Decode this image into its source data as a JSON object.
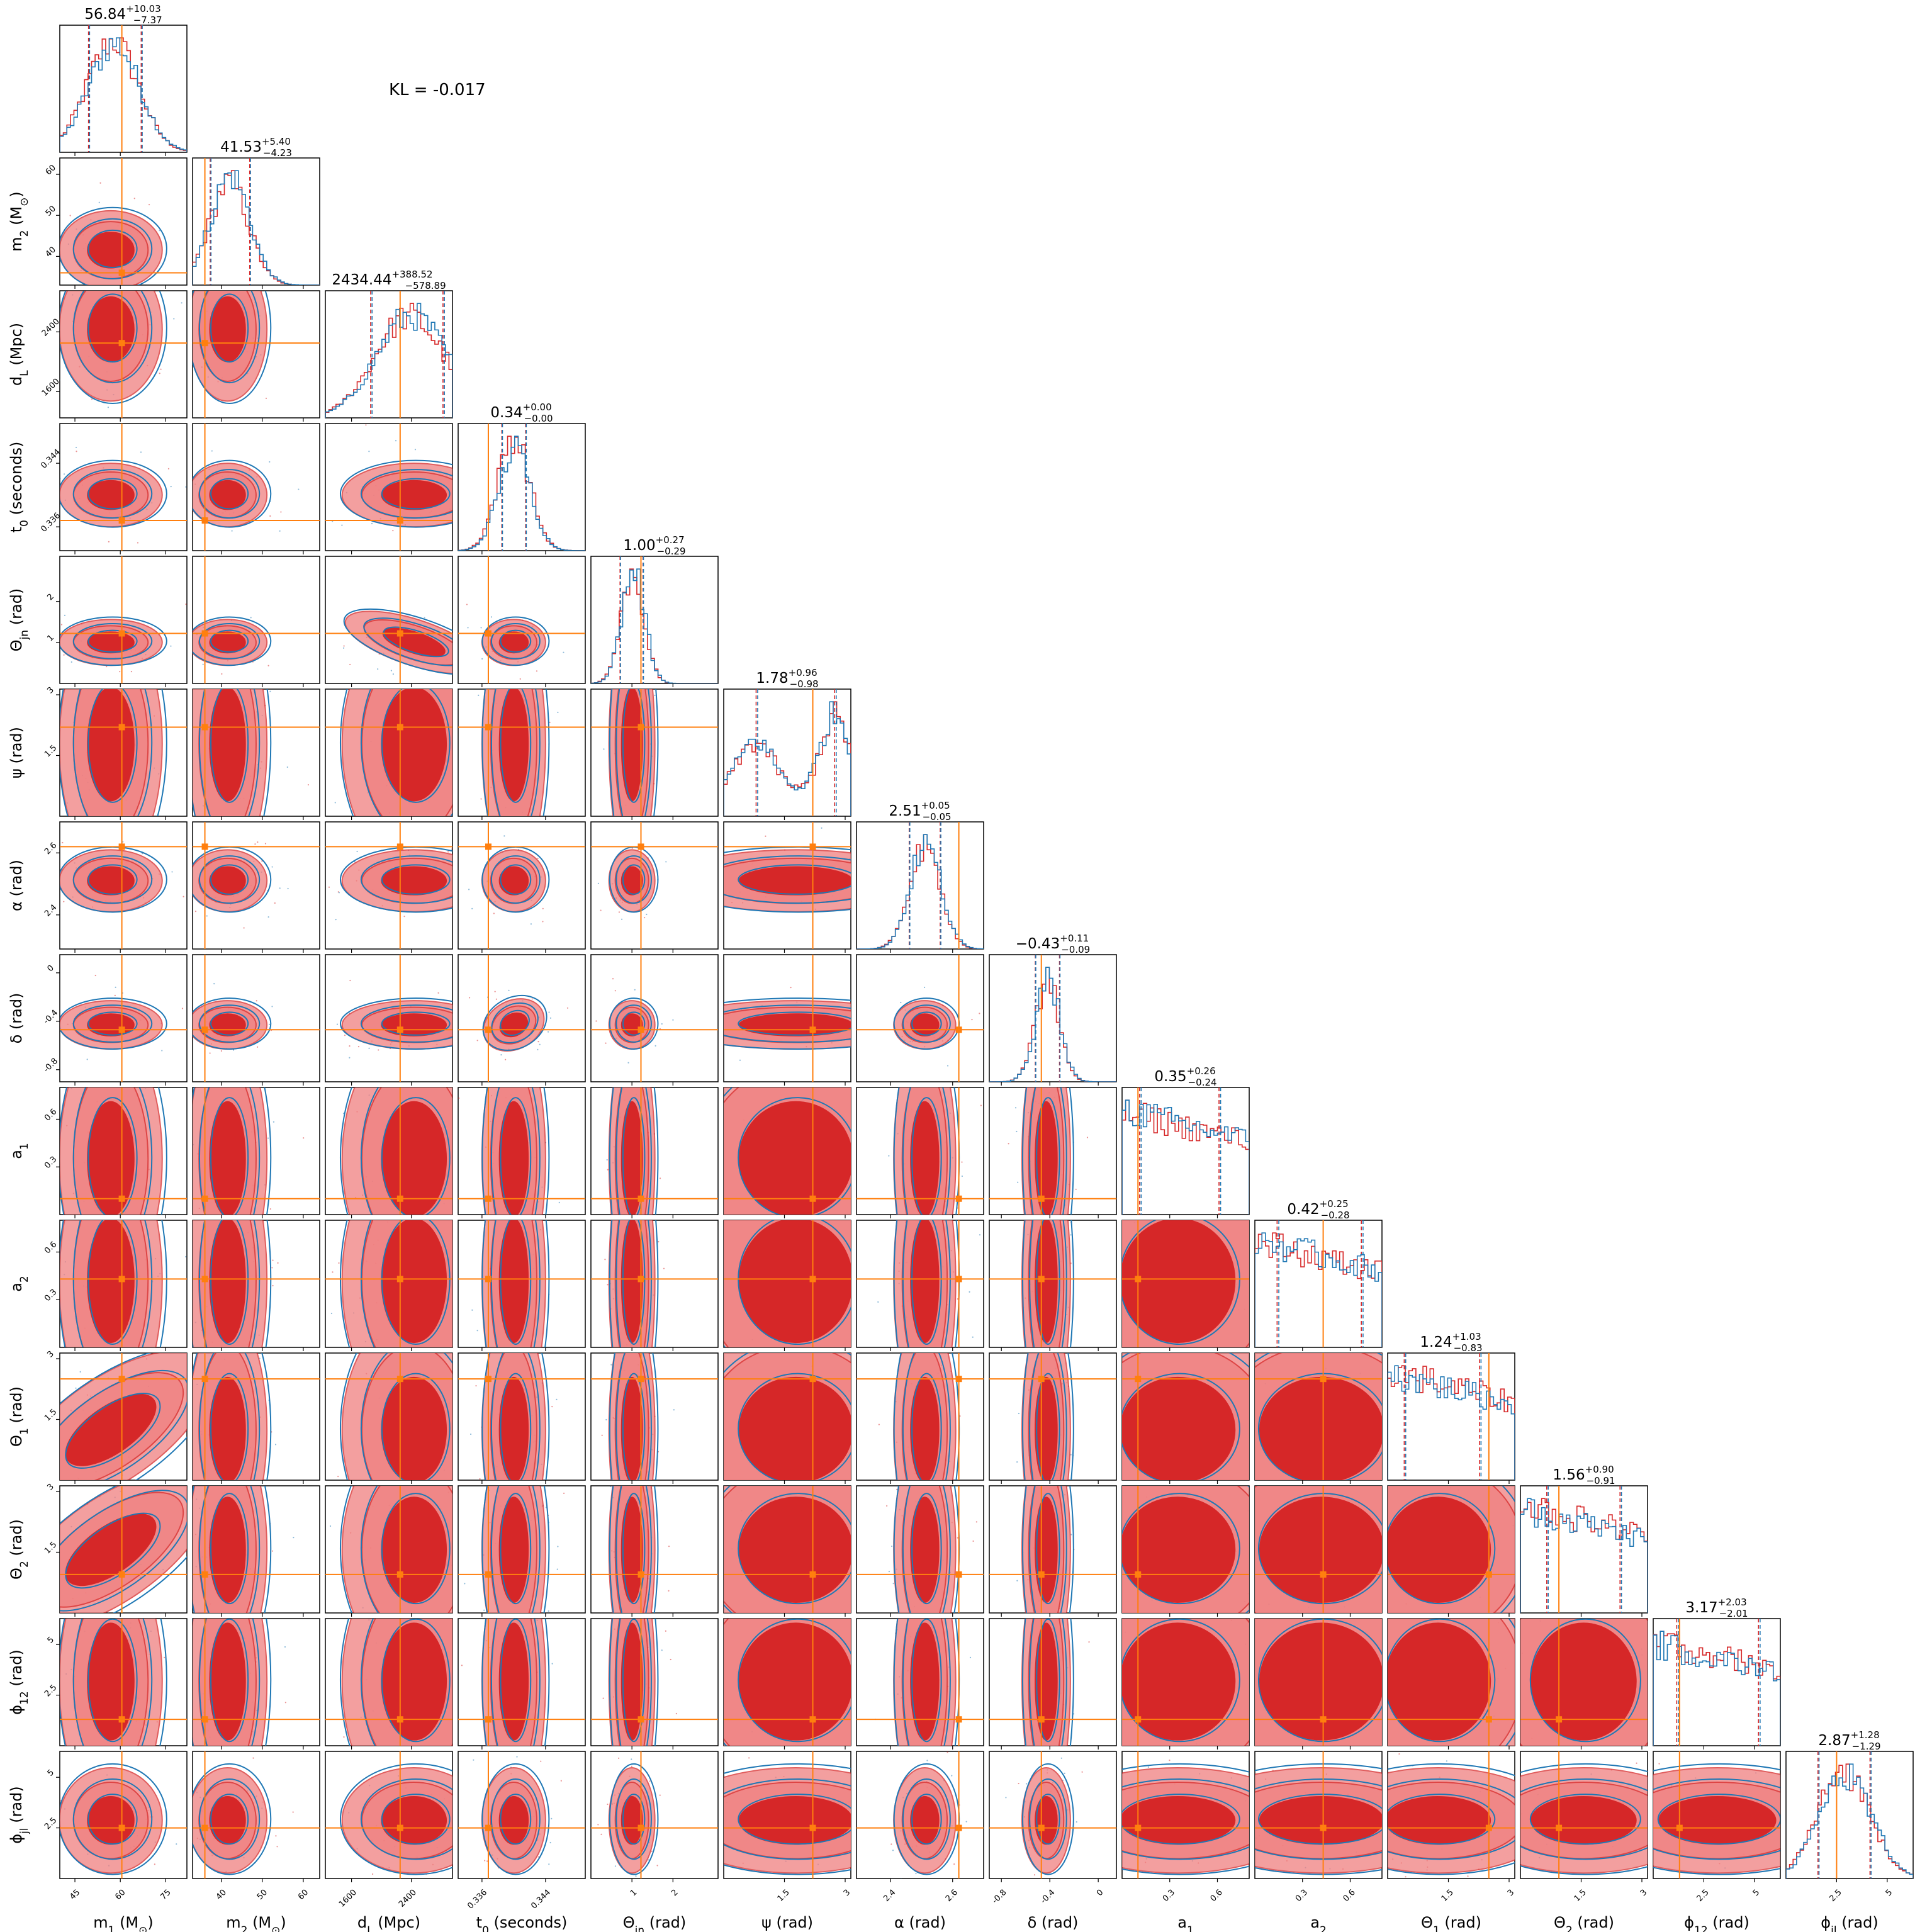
{
  "annotation": "KL = -0.017",
  "colors": {
    "red": "#d62728",
    "red_light": "#f08080",
    "blue": "#1f77b4",
    "orange": "#ff7f0e"
  },
  "chart_data": {
    "type": "corner",
    "series": [
      {
        "name": "",
        "color": "#d62728"
      },
      {
        "name": "",
        "color": "#1f77b4"
      }
    ],
    "parameters": [
      {
        "key": "m1",
        "label": "m_1 (M_⊙)",
        "title_value": "56.84",
        "title_plus": "+10.03",
        "title_minus": "−7.37",
        "range": [
          40,
          82
        ],
        "ticks": [
          45,
          60,
          75
        ],
        "injection": 60.5,
        "mean": 56.84,
        "sigma": 8.5,
        "q_low": 49.5,
        "q_high": 66.9,
        "skew": 0.4,
        "contour_fill": 0
      },
      {
        "key": "m2",
        "label": "m_2 (M_⊙)",
        "title_value": "41.53",
        "title_plus": "+5.40",
        "title_minus": "−4.23",
        "range": [
          33,
          64
        ],
        "ticks": [
          40,
          50,
          60
        ],
        "injection": 36,
        "mean": 41.53,
        "sigma": 4.8,
        "q_low": 37.3,
        "q_high": 46.93,
        "skew": 0.4,
        "contour_fill": 0
      },
      {
        "key": "dL",
        "label": "d_L (Mpc)",
        "title_value": "2434.44",
        "title_plus": "+388.52",
        "title_minus": "−578.89",
        "range": [
          1250,
          2950
        ],
        "ticks": [
          1600,
          2400
        ],
        "injection": 2250,
        "mean": 2434.44,
        "sigma": 480,
        "q_low": 1855.55,
        "q_high": 2822.96,
        "skew": -0.6,
        "contour_fill": 0
      },
      {
        "key": "t0",
        "label": "t_0 (seconds)",
        "title_value": "0.34",
        "title_plus": "+0.00",
        "title_minus": "−0.00",
        "range": [
          0.333,
          0.349
        ],
        "ticks": [
          0.336,
          0.344
        ],
        "injection": 0.3368,
        "mean": 0.34,
        "sigma": 0.002,
        "q_low": 0.3385,
        "q_high": 0.3415,
        "skew": 0,
        "contour_fill": 0
      },
      {
        "key": "theta_jn",
        "label": "Θ_jn (rad)",
        "title_value": "1.00",
        "title_plus": "+0.27",
        "title_minus": "−0.29",
        "range": [
          0,
          3.1
        ],
        "ticks": [
          1,
          2
        ],
        "injection": 1.22,
        "mean": 1.0,
        "sigma": 0.28,
        "q_low": 0.71,
        "q_high": 1.27,
        "skew": 0.3,
        "contour_fill": 0
      },
      {
        "key": "psi",
        "label": "ψ (rad)",
        "title_value": "1.78",
        "title_plus": "+0.96",
        "title_minus": "−0.98",
        "range": [
          0,
          3.14
        ],
        "ticks": [
          1.5,
          3.0
        ],
        "injection": 2.2,
        "mean": 1.78,
        "sigma": 0.97,
        "q_low": 0.8,
        "q_high": 2.74,
        "skew": 0,
        "contour_fill": 0
      },
      {
        "key": "alpha",
        "label": "α (rad)",
        "title_value": "2.51",
        "title_plus": "+0.05",
        "title_minus": "−0.05",
        "range": [
          2.29,
          2.7
        ],
        "ticks": [
          2.4,
          2.6
        ],
        "injection": 2.62,
        "mean": 2.51,
        "sigma": 0.05,
        "q_low": 2.46,
        "q_high": 2.56,
        "skew": 0,
        "contour_fill": 0
      },
      {
        "key": "delta",
        "label": "δ (rad)",
        "title_value": "−0.43",
        "title_plus": "+0.11",
        "title_minus": "−0.09",
        "range": [
          -0.9,
          0.15
        ],
        "ticks": [
          -0.8,
          -0.4,
          0.0
        ],
        "injection": -0.47,
        "mean": -0.43,
        "sigma": 0.1,
        "q_low": -0.52,
        "q_high": -0.32,
        "skew": 0.5,
        "contour_fill": 0
      },
      {
        "key": "a1",
        "label": "a_1",
        "title_value": "0.35",
        "title_plus": "+0.26",
        "title_minus": "−0.24",
        "range": [
          0,
          0.8
        ],
        "ticks": [
          0.3,
          0.6
        ],
        "injection": 0.1,
        "mean": 0.35,
        "sigma": 0.25,
        "q_low": 0.11,
        "q_high": 0.61,
        "skew": 0,
        "contour_fill": 1
      },
      {
        "key": "a2",
        "label": "a_2",
        "title_value": "0.42",
        "title_plus": "+0.25",
        "title_minus": "−0.28",
        "range": [
          0,
          0.8
        ],
        "ticks": [
          0.3,
          0.6
        ],
        "injection": 0.43,
        "mean": 0.42,
        "sigma": 0.27,
        "q_low": 0.14,
        "q_high": 0.67,
        "skew": 0,
        "contour_fill": 1
      },
      {
        "key": "theta1",
        "label": "Θ_1 (rad)",
        "title_value": "1.24",
        "title_plus": "+1.03",
        "title_minus": "−0.83",
        "range": [
          0,
          3.14
        ],
        "ticks": [
          1.5,
          3.0
        ],
        "injection": 2.5,
        "mean": 1.24,
        "sigma": 0.9,
        "q_low": 0.41,
        "q_high": 2.27,
        "skew": 0,
        "contour_fill": 1
      },
      {
        "key": "theta2",
        "label": "Θ_2 (rad)",
        "title_value": "1.56",
        "title_plus": "+0.90",
        "title_minus": "−0.91",
        "range": [
          0,
          3.14
        ],
        "ticks": [
          1.5,
          3.0
        ],
        "injection": 0.95,
        "mean": 1.56,
        "sigma": 0.9,
        "q_low": 0.65,
        "q_high": 2.46,
        "skew": 0,
        "contour_fill": 1
      },
      {
        "key": "phi12",
        "label": "ϕ_12 (rad)",
        "title_value": "3.17",
        "title_plus": "+2.03",
        "title_minus": "−2.01",
        "range": [
          0,
          6.28
        ],
        "ticks": [
          2.5,
          5.0
        ],
        "injection": 1.3,
        "mean": 3.17,
        "sigma": 2.0,
        "q_low": 1.16,
        "q_high": 5.2,
        "skew": 0,
        "contour_fill": 1
      },
      {
        "key": "phi_jl",
        "label": "ϕ_jl (rad)",
        "title_value": "2.87",
        "title_plus": "+1.28",
        "title_minus": "−1.29",
        "range": [
          0,
          6.28
        ],
        "ticks": [
          2.5,
          5.0
        ],
        "injection": 2.5,
        "mean": 2.87,
        "sigma": 1.3,
        "q_low": 1.58,
        "q_high": 4.15,
        "skew": 0,
        "contour_fill": 0
      }
    ]
  }
}
